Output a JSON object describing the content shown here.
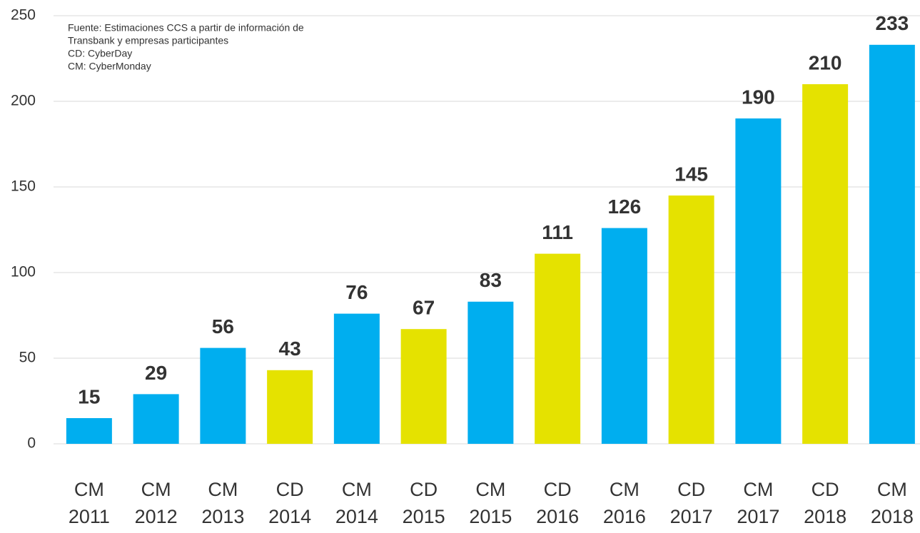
{
  "chart_data": {
    "type": "bar",
    "note": [
      "Fuente: Estimaciones CCS a partir de información de",
      "Transbank y empresas participantes",
      "CD: CyberDay",
      "CM: CyberMonday"
    ],
    "categories": [
      [
        "CM",
        "2011"
      ],
      [
        "CM",
        "2012"
      ],
      [
        "CM",
        "2013"
      ],
      [
        "CD",
        "2014"
      ],
      [
        "CM",
        "2014"
      ],
      [
        "CD",
        "2015"
      ],
      [
        "CM",
        "2015"
      ],
      [
        "CD",
        "2016"
      ],
      [
        "CM",
        "2016"
      ],
      [
        "CD",
        "2017"
      ],
      [
        "CM",
        "2017"
      ],
      [
        "CD",
        "2018"
      ],
      [
        "CM",
        "2018"
      ]
    ],
    "values": [
      15,
      29,
      56,
      43,
      76,
      67,
      83,
      111,
      126,
      145,
      190,
      210,
      233
    ],
    "colors": [
      "#00aeef",
      "#00aeef",
      "#00aeef",
      "#e5e200",
      "#00aeef",
      "#e5e200",
      "#00aeef",
      "#e5e200",
      "#00aeef",
      "#e5e200",
      "#00aeef",
      "#e5e200",
      "#00aeef"
    ],
    "ylim": [
      0,
      250
    ],
    "yticks": [
      0,
      50,
      100,
      150,
      200,
      250
    ],
    "grid": true
  }
}
